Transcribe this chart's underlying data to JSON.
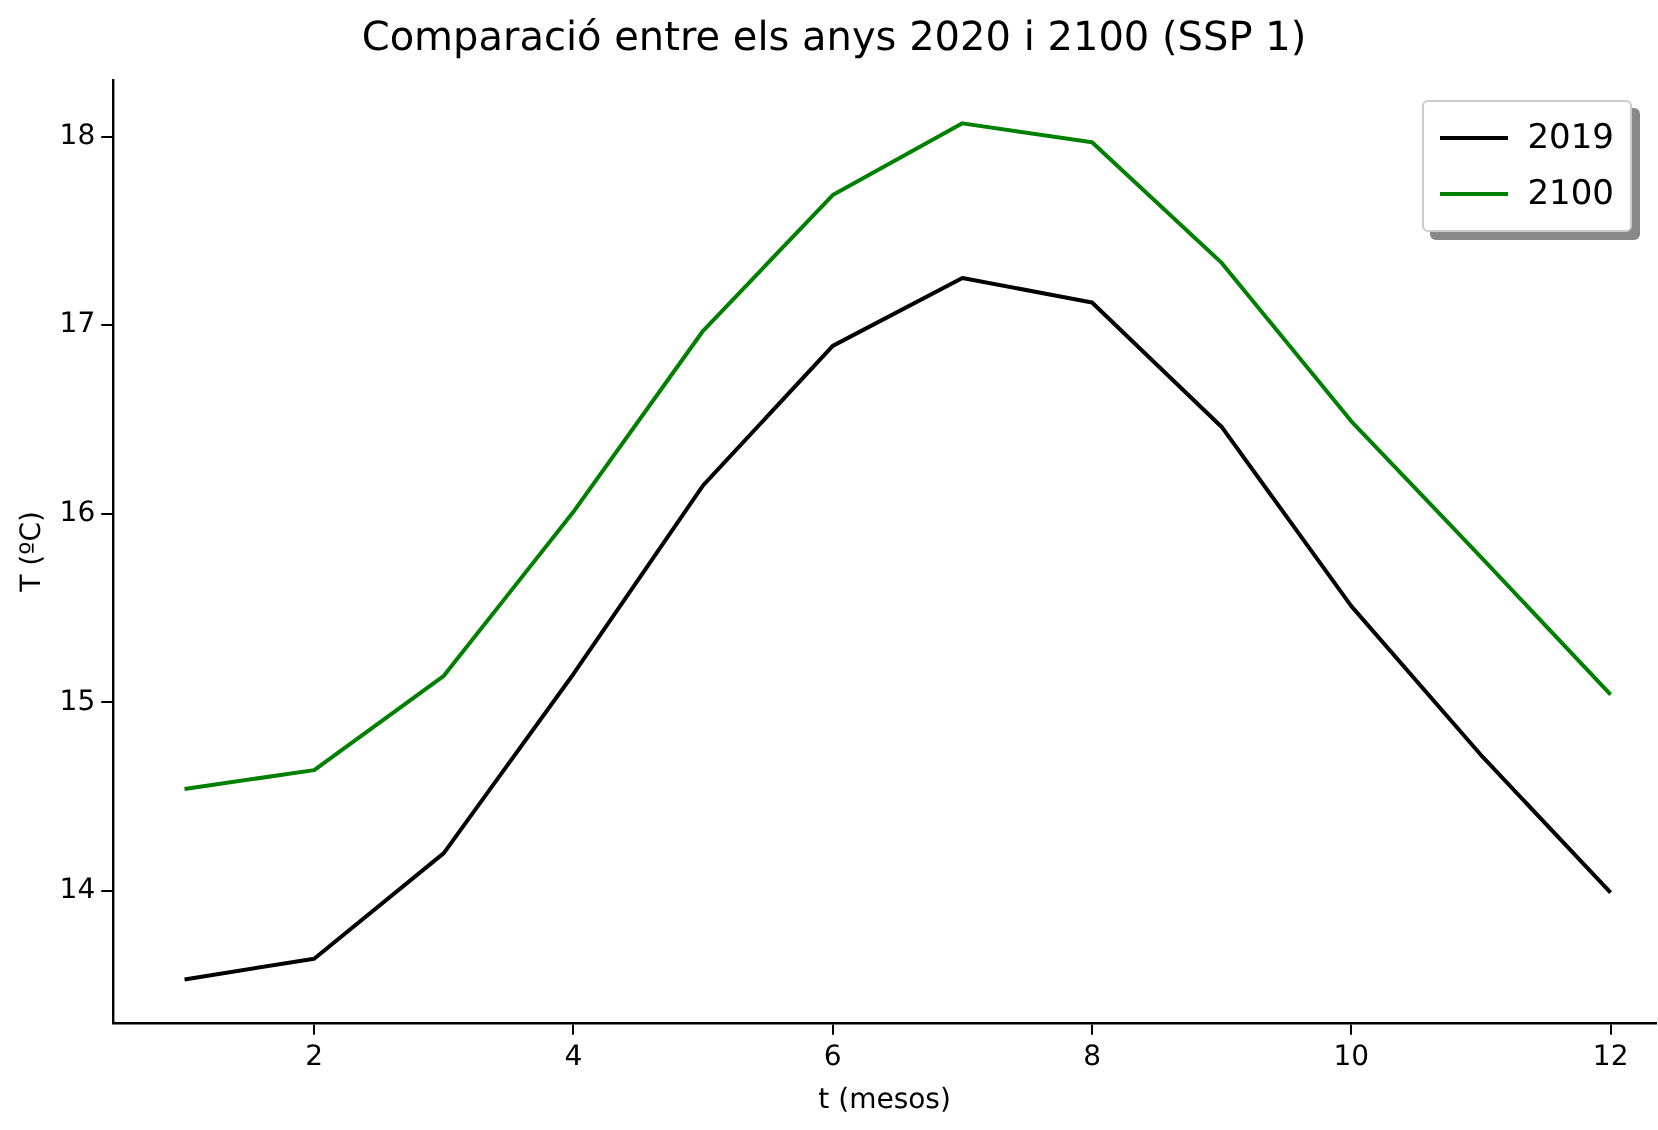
{
  "chart_data": {
    "type": "line",
    "title": "Comparació entre els anys 2020 i 2100 (SSP 1)",
    "xlabel": "t (mesos)",
    "ylabel": "T (ºC)",
    "x": [
      1,
      2,
      3,
      4,
      5,
      6,
      7,
      8,
      9,
      10,
      11,
      12
    ],
    "series": [
      {
        "name": "2019",
        "color": "#000000",
        "values": [
          13.53,
          13.64,
          14.2,
          15.15,
          16.15,
          16.89,
          17.25,
          17.12,
          16.46,
          15.51,
          14.72,
          13.99
        ]
      },
      {
        "name": "2100",
        "color": "#008000",
        "values": [
          14.54,
          14.64,
          15.14,
          16.01,
          16.97,
          17.69,
          18.07,
          17.97,
          17.33,
          16.49,
          15.77,
          15.04
        ]
      }
    ],
    "xlim": [
      0.45,
      12.35
    ],
    "ylim": [
      13.3,
      18.3
    ],
    "xticks": [
      2,
      4,
      6,
      8,
      10,
      12
    ],
    "yticks": [
      14,
      15,
      16,
      17,
      18
    ],
    "grid": false,
    "legend": "top right",
    "marker": "none",
    "line_style": "solid"
  }
}
